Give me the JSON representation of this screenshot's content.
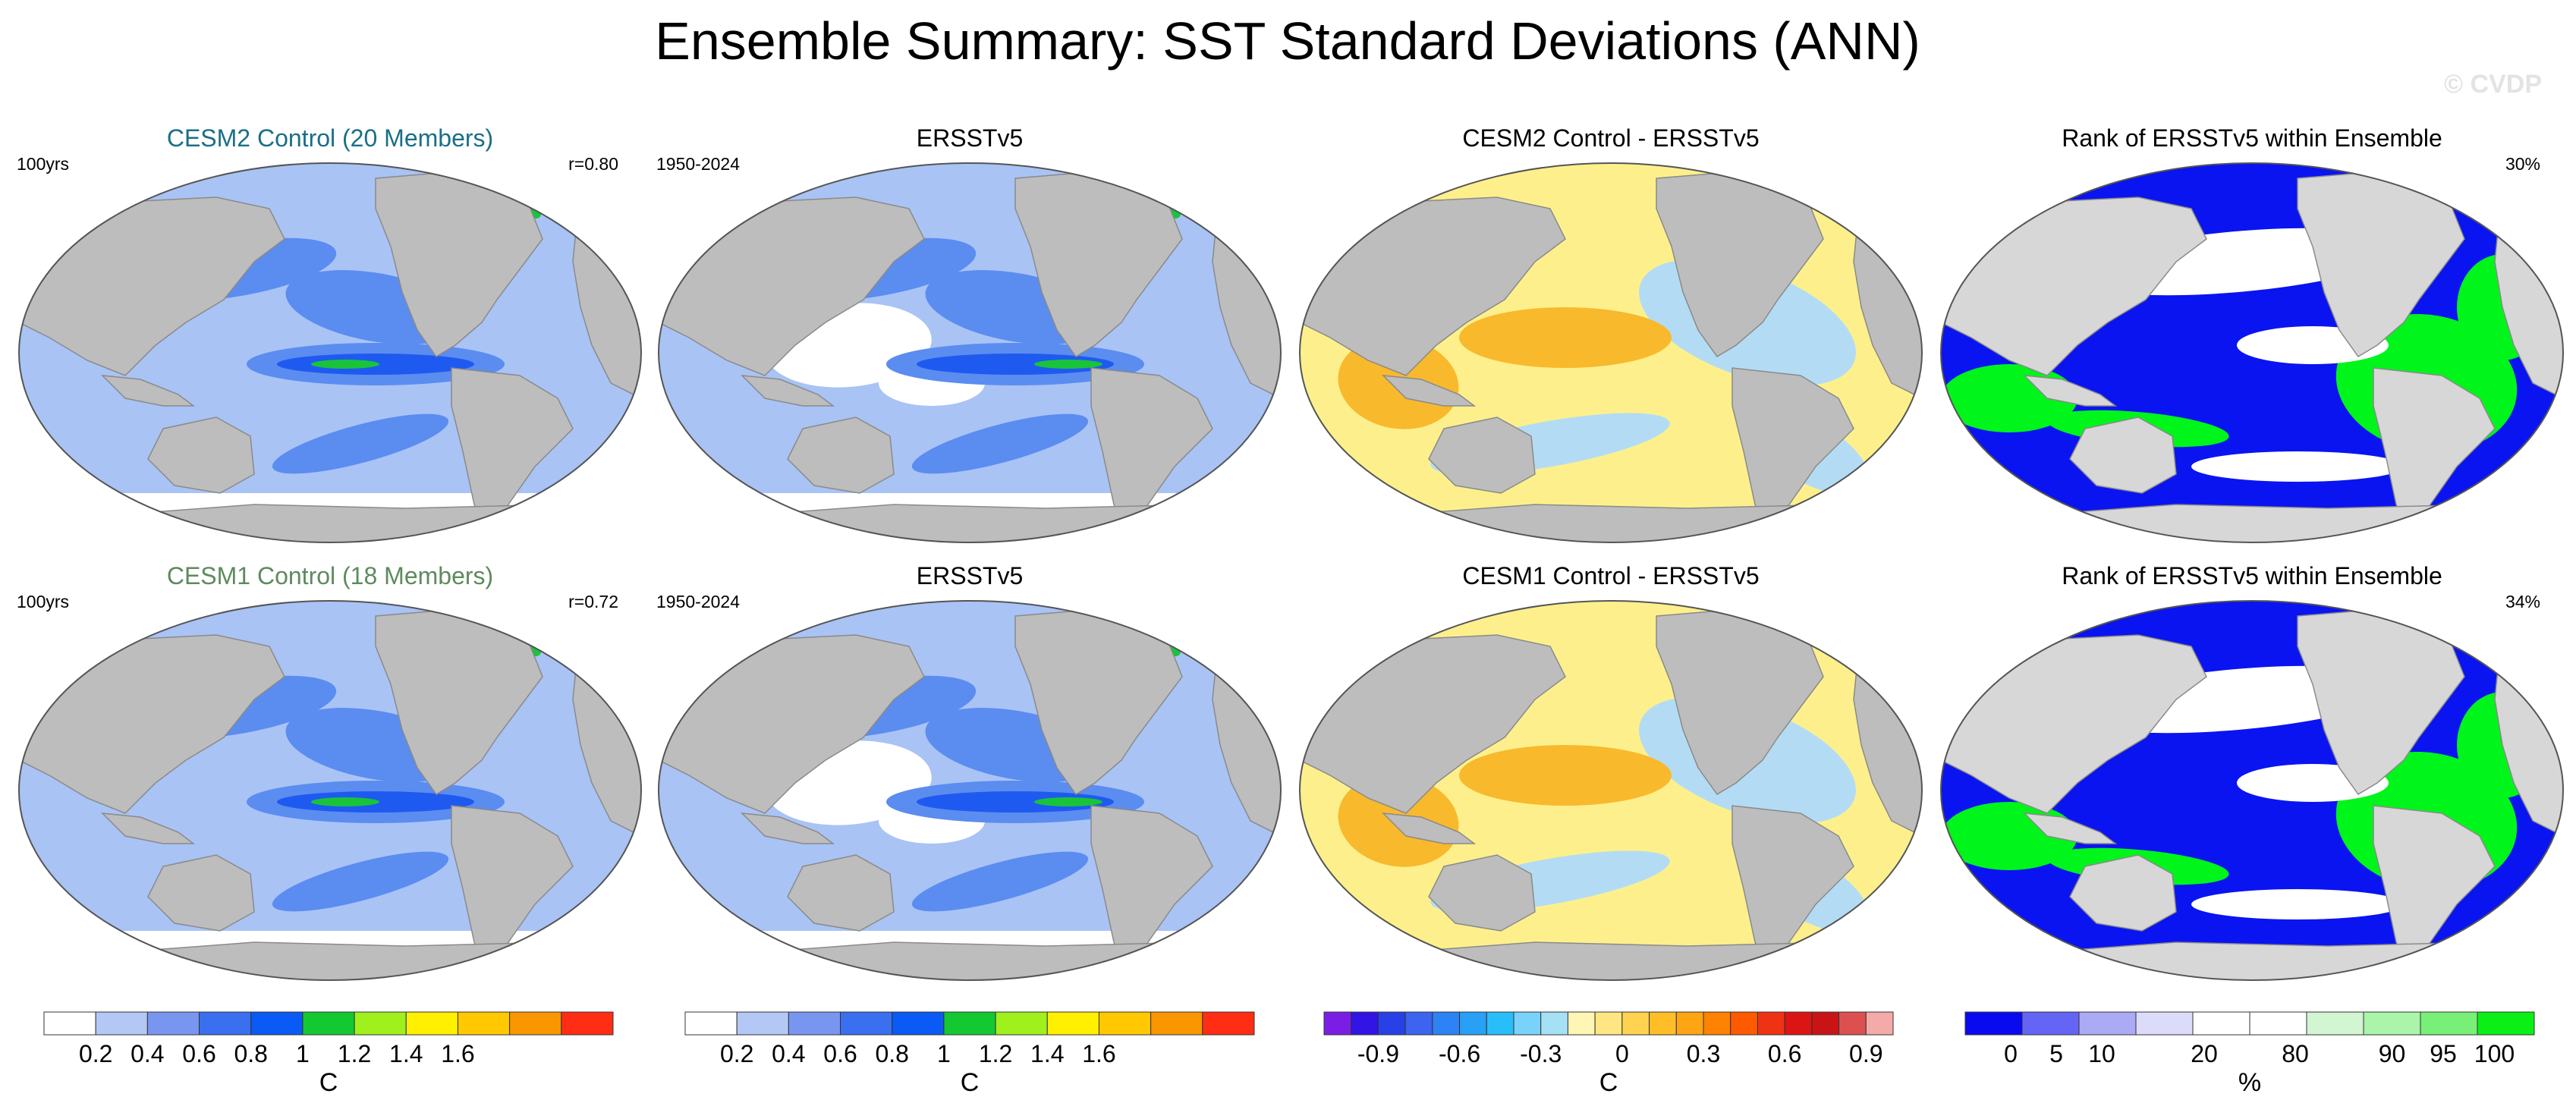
{
  "page": {
    "title": "Ensemble Summary: SST Standard Deviations (ANN)",
    "watermark": "© CVDP"
  },
  "colors": {
    "land": "#bdbdbd",
    "ocean_white": "#ffffff",
    "ocean_paleblue": "#a9c3f5",
    "ocean_blue": "#5b8cf0",
    "ocean_deepblue": "#1f5af0",
    "green": "#19c43a",
    "rank_blue": "#0a14f0",
    "rank_green": "#00f51a",
    "diff_yellow": "#fdf08c",
    "diff_orange": "#f8b92d",
    "diff_red": "#e1321e",
    "diff_lightblue": "#b3dcf4",
    "model1_title_color": "#1a6f86",
    "model2_title_color": "#5e8a5e"
  },
  "rows": [
    {
      "panels": [
        {
          "title": "CESM2 Control (20 Members)",
          "left_label": "100yrs",
          "right_label": "r=0.80",
          "kind": "std"
        },
        {
          "title": "ERSSTv5",
          "left_label": "1950-2024",
          "right_label": "",
          "kind": "std_obs"
        },
        {
          "title": "CESM2 Control - ERSSTv5",
          "left_label": "",
          "right_label": "",
          "kind": "diff"
        },
        {
          "title": "Rank of ERSSTv5 within Ensemble",
          "left_label": "",
          "right_label": "30%",
          "kind": "rank"
        }
      ]
    },
    {
      "panels": [
        {
          "title": "CESM1 Control (18 Members)",
          "left_label": "100yrs",
          "right_label": "r=0.72",
          "kind": "std"
        },
        {
          "title": "ERSSTv5",
          "left_label": "1950-2024",
          "right_label": "",
          "kind": "std_obs"
        },
        {
          "title": "CESM1 Control - ERSSTv5",
          "left_label": "",
          "right_label": "",
          "kind": "diff"
        },
        {
          "title": "Rank of ERSSTv5 within Ensemble",
          "left_label": "",
          "right_label": "34%",
          "kind": "rank"
        }
      ]
    }
  ],
  "colorbars": [
    {
      "unit": "C",
      "colors": [
        "#ffffff",
        "#b4c8f5",
        "#7896f0",
        "#3a6ff0",
        "#0a5af5",
        "#14c832",
        "#a0f01e",
        "#fff000",
        "#ffc800",
        "#fa9600",
        "#ff2d14"
      ],
      "labels": [
        "0.2",
        "0.4",
        "0.6",
        "0.8",
        "1",
        "1.2",
        "1.4",
        "1.6"
      ]
    },
    {
      "unit": "C",
      "colors": [
        "#ffffff",
        "#b4c8f5",
        "#7896f0",
        "#3a6ff0",
        "#0a5af5",
        "#14c832",
        "#a0f01e",
        "#fff000",
        "#ffc800",
        "#fa9600",
        "#ff2d14"
      ],
      "labels": [
        "0.2",
        "0.4",
        "0.6",
        "0.8",
        "1",
        "1.2",
        "1.4",
        "1.6"
      ]
    },
    {
      "unit": "C",
      "colors": [
        "#7a1ee6",
        "#3214e6",
        "#2841e6",
        "#3c64f0",
        "#2d82f5",
        "#28a0f5",
        "#28befa",
        "#78d2fa",
        "#a5e1f5",
        "#fff5b4",
        "#ffe682",
        "#ffd250",
        "#ffbe28",
        "#ffa514",
        "#ff8200",
        "#ff5a00",
        "#f03214",
        "#dc1414",
        "#c81414",
        "#dc5050",
        "#f5aaaa"
      ],
      "labels": [
        "-0.9",
        "-0.6",
        "-0.3",
        "0",
        "0.3",
        "0.6",
        "0.9"
      ]
    },
    {
      "unit": "%",
      "colors": [
        "#0a0af0",
        "#6464f5",
        "#aaaaf5",
        "#dcdcfa",
        "#ffffff",
        "#ffffff",
        "#d2f5d2",
        "#aaf5aa",
        "#78f078",
        "#0af014"
      ],
      "labels": [
        "0",
        "5",
        "10",
        "20",
        "80",
        "90",
        "95",
        "100"
      ]
    }
  ]
}
